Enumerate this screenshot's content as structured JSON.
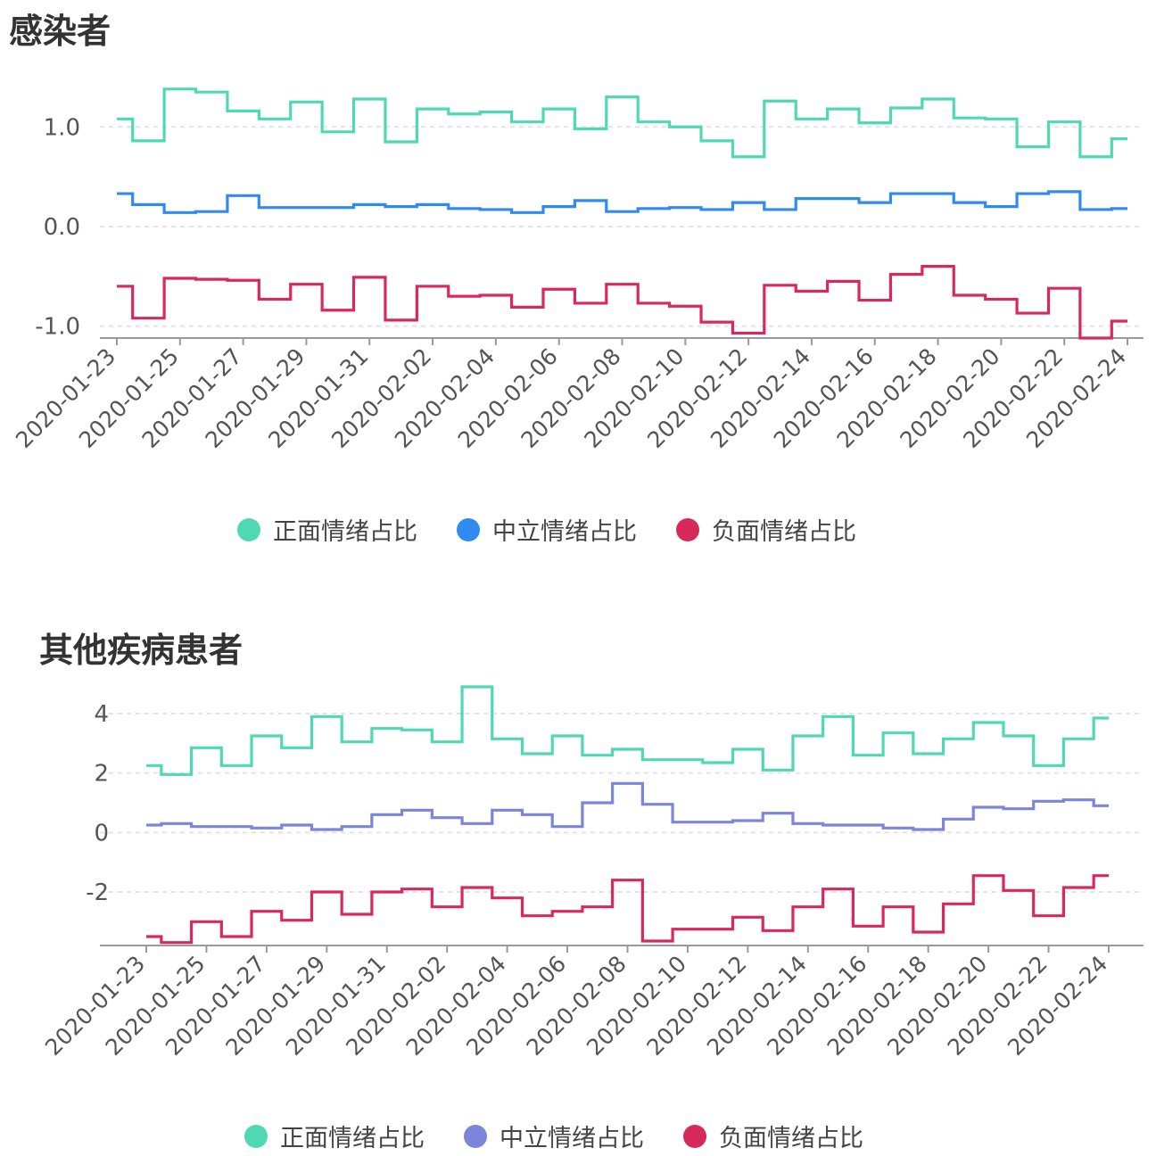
{
  "charts": [
    {
      "title": "感染者",
      "legend": [
        {
          "label": "正面情绪占比",
          "color": "#4fd8b4"
        },
        {
          "label": "中立情绪占比",
          "color": "#2f8bf2"
        },
        {
          "label": "负面情绪占比",
          "color": "#d9295c"
        }
      ]
    },
    {
      "title": "其他疾病患者",
      "legend": [
        {
          "label": "正面情绪占比",
          "color": "#4fd8b4"
        },
        {
          "label": "中立情绪占比",
          "color": "#7b85d9"
        },
        {
          "label": "负面情绪占比",
          "color": "#d9295c"
        }
      ]
    }
  ],
  "chart_data": [
    {
      "type": "line",
      "step": "start",
      "title": "感染者",
      "x": [
        "2020-01-23",
        "2020-01-24",
        "2020-01-25",
        "2020-01-26",
        "2020-01-27",
        "2020-01-28",
        "2020-01-29",
        "2020-01-30",
        "2020-01-31",
        "2020-02-01",
        "2020-02-02",
        "2020-02-03",
        "2020-02-04",
        "2020-02-05",
        "2020-02-06",
        "2020-02-07",
        "2020-02-08",
        "2020-02-09",
        "2020-02-10",
        "2020-02-11",
        "2020-02-12",
        "2020-02-13",
        "2020-02-14",
        "2020-02-15",
        "2020-02-16",
        "2020-02-17",
        "2020-02-18",
        "2020-02-19",
        "2020-02-20",
        "2020-02-21",
        "2020-02-22",
        "2020-02-23",
        "2020-02-24"
      ],
      "x_ticks": [
        "2020-01-23",
        "2020-01-25",
        "2020-01-27",
        "2020-01-29",
        "2020-01-31",
        "2020-02-02",
        "2020-02-04",
        "2020-02-06",
        "2020-02-08",
        "2020-02-10",
        "2020-02-12",
        "2020-02-14",
        "2020-02-16",
        "2020-02-18",
        "2020-02-20",
        "2020-02-22",
        "2020-02-24"
      ],
      "y_ticks": [
        1.0,
        0.0,
        -1.0
      ],
      "y_tick_labels": [
        "1.0",
        "0.0",
        "-1.0"
      ],
      "ylim": [
        -1.12,
        1.45
      ],
      "series": [
        {
          "name": "正面情绪占比",
          "values": [
            1.08,
            0.86,
            1.38,
            1.35,
            1.16,
            1.08,
            1.25,
            0.95,
            1.28,
            0.85,
            1.18,
            1.13,
            1.15,
            1.05,
            1.18,
            0.98,
            1.3,
            1.05,
            1.0,
            0.86,
            0.7,
            1.26,
            1.08,
            1.18,
            1.04,
            1.19,
            1.28,
            1.09,
            1.08,
            0.8,
            1.05,
            0.7,
            0.88
          ]
        },
        {
          "name": "中立情绪占比",
          "values": [
            0.33,
            0.22,
            0.14,
            0.15,
            0.31,
            0.19,
            0.19,
            0.19,
            0.22,
            0.2,
            0.22,
            0.18,
            0.17,
            0.14,
            0.2,
            0.26,
            0.15,
            0.18,
            0.19,
            0.17,
            0.24,
            0.17,
            0.28,
            0.28,
            0.24,
            0.33,
            0.33,
            0.24,
            0.2,
            0.33,
            0.35,
            0.17,
            0.18
          ]
        },
        {
          "name": "负面情绪占比",
          "values": [
            -0.6,
            -0.92,
            -0.52,
            -0.53,
            -0.54,
            -0.73,
            -0.58,
            -0.84,
            -0.51,
            -0.94,
            -0.6,
            -0.7,
            -0.69,
            -0.81,
            -0.63,
            -0.77,
            -0.58,
            -0.77,
            -0.8,
            -0.96,
            -1.07,
            -0.59,
            -0.65,
            -0.55,
            -0.74,
            -0.48,
            -0.4,
            -0.69,
            -0.73,
            -0.87,
            -0.62,
            -1.12,
            -0.95
          ]
        }
      ],
      "legend": [
        "正面情绪占比",
        "中立情绪占比",
        "负面情绪占比"
      ]
    },
    {
      "type": "line",
      "step": "start",
      "title": "其他疾病患者",
      "x": [
        "2020-01-23",
        "2020-01-24",
        "2020-01-25",
        "2020-01-26",
        "2020-01-27",
        "2020-01-28",
        "2020-01-29",
        "2020-01-30",
        "2020-01-31",
        "2020-02-01",
        "2020-02-02",
        "2020-02-03",
        "2020-02-04",
        "2020-02-05",
        "2020-02-06",
        "2020-02-07",
        "2020-02-08",
        "2020-02-09",
        "2020-02-10",
        "2020-02-11",
        "2020-02-12",
        "2020-02-13",
        "2020-02-14",
        "2020-02-15",
        "2020-02-16",
        "2020-02-17",
        "2020-02-18",
        "2020-02-19",
        "2020-02-20",
        "2020-02-21",
        "2020-02-22",
        "2020-02-23",
        "2020-02-24"
      ],
      "x_ticks": [
        "2020-01-23",
        "2020-01-25",
        "2020-01-27",
        "2020-01-29",
        "2020-01-31",
        "2020-02-02",
        "2020-02-04",
        "2020-02-06",
        "2020-02-08",
        "2020-02-10",
        "2020-02-12",
        "2020-02-14",
        "2020-02-16",
        "2020-02-18",
        "2020-02-20",
        "2020-02-22",
        "2020-02-24"
      ],
      "y_ticks": [
        4,
        2,
        0,
        -2
      ],
      "y_tick_labels": [
        "4",
        "2",
        "0",
        "-2"
      ],
      "ylim": [
        -3.8,
        4.3
      ],
      "series": [
        {
          "name": "正面情绪占比",
          "values": [
            2.25,
            1.95,
            2.85,
            2.25,
            3.25,
            2.85,
            3.9,
            3.05,
            3.5,
            3.45,
            3.05,
            4.9,
            3.15,
            2.65,
            3.25,
            2.6,
            2.8,
            2.45,
            2.45,
            2.35,
            2.8,
            2.1,
            3.25,
            3.9,
            2.6,
            3.35,
            2.65,
            3.15,
            3.7,
            3.25,
            2.25,
            3.15,
            3.85
          ]
        },
        {
          "name": "中立情绪占比",
          "values": [
            0.25,
            0.3,
            0.2,
            0.2,
            0.15,
            0.25,
            0.1,
            0.2,
            0.6,
            0.75,
            0.5,
            0.3,
            0.75,
            0.6,
            0.2,
            1.0,
            1.65,
            0.95,
            0.35,
            0.35,
            0.4,
            0.65,
            0.3,
            0.25,
            0.25,
            0.15,
            0.1,
            0.45,
            0.85,
            0.8,
            1.05,
            1.1,
            0.9
          ]
        },
        {
          "name": "负面情绪占比",
          "values": [
            -3.5,
            -3.7,
            -3.0,
            -3.5,
            -2.65,
            -2.95,
            -2.0,
            -2.75,
            -2.0,
            -1.9,
            -2.5,
            -1.85,
            -2.2,
            -2.8,
            -2.65,
            -2.5,
            -1.6,
            -3.65,
            -3.25,
            -3.25,
            -2.85,
            -3.3,
            -2.5,
            -1.9,
            -3.15,
            -2.5,
            -3.35,
            -2.4,
            -1.45,
            -1.95,
            -2.8,
            -1.85,
            -1.45
          ]
        }
      ],
      "legend": [
        "正面情绪占比",
        "中立情绪占比",
        "负面情绪占比"
      ]
    }
  ]
}
